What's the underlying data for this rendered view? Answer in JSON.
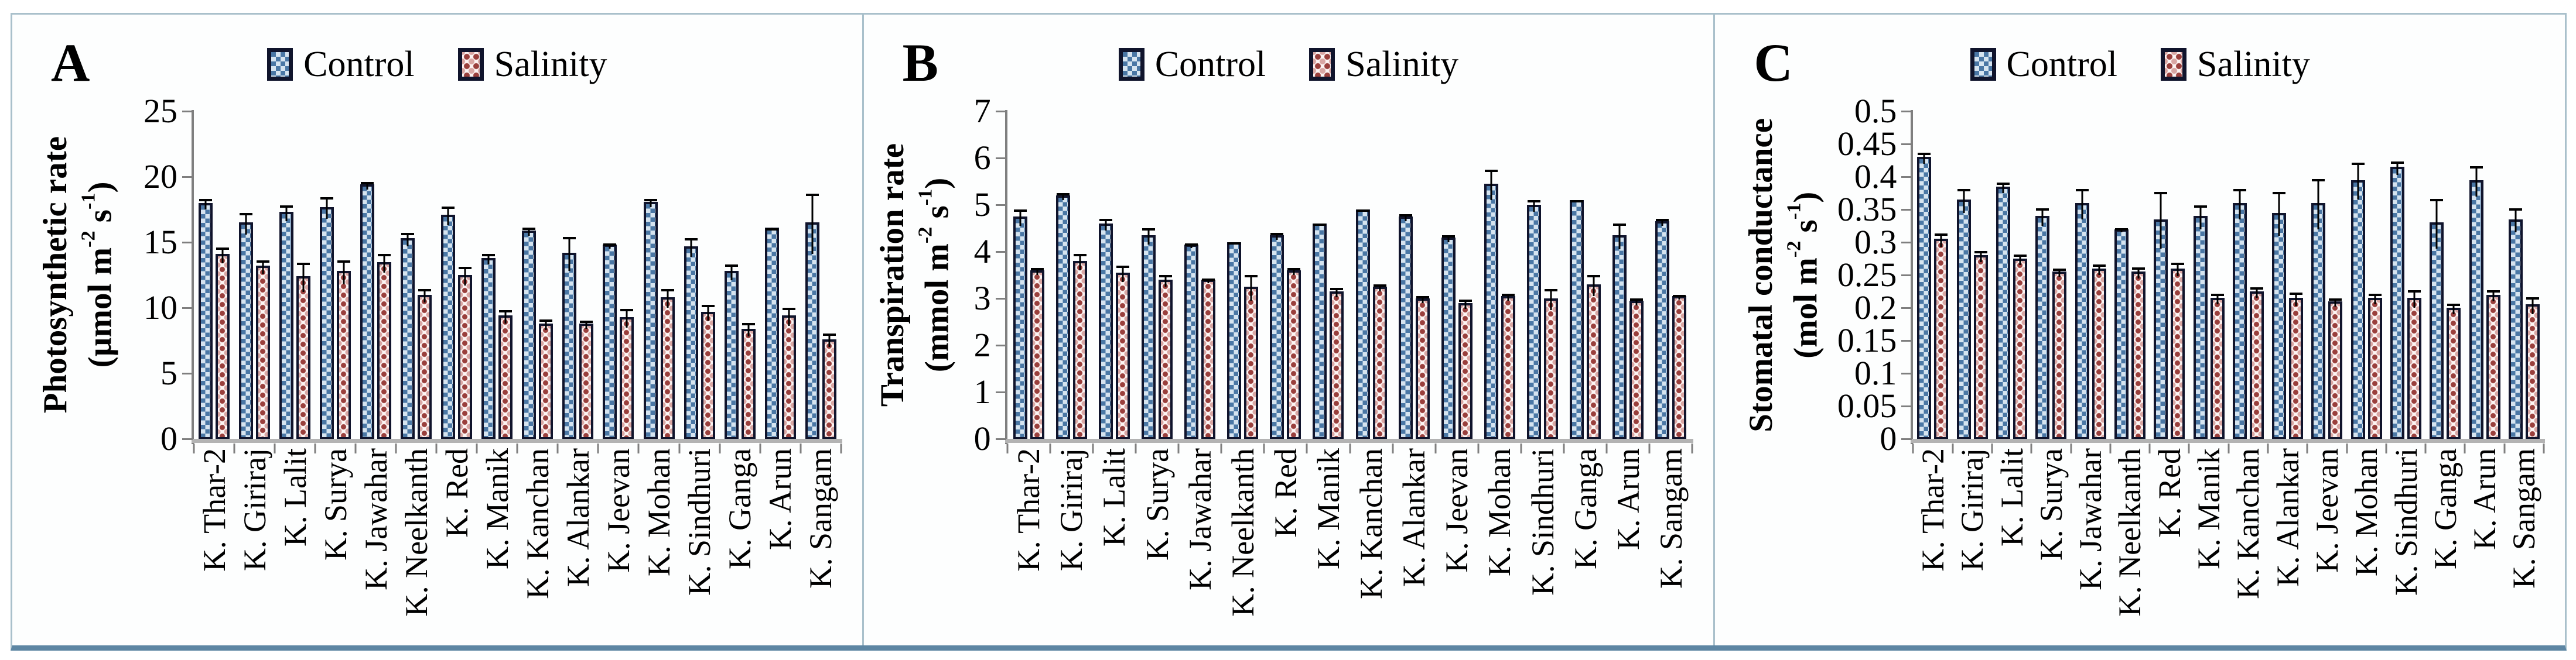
{
  "colors": {
    "control_fill": "#4a77a5",
    "control_dot": "#d6e4f0",
    "salinity_bg": "#fdf5f4",
    "salinity_dot": "#9a3f3c",
    "salinity_dot2": "#d9a7a4",
    "bar_border": "#10142c",
    "axis": "#7f7f7f",
    "baseline": "#b3b3b3",
    "error": "#000000",
    "frame_border": "#a9c0cb",
    "frame_bottom": "#5d86a3"
  },
  "chart_data": [
    {
      "type": "bar",
      "panel_label": "A",
      "title": "",
      "ylabel": "Photosynthetic rate",
      "unit_parts": {
        "p1": "(µmol m",
        "sup1": "-2",
        "p2": " s",
        "sup2": "-1",
        "p3": ")"
      },
      "ylim": [
        0,
        25
      ],
      "yticks": [
        "0",
        "5",
        "10",
        "15",
        "20",
        "25"
      ],
      "grid": false,
      "legend_position": "top-center",
      "categories": [
        "K. Thar-2",
        "K. Giriraj",
        "K. Lalit",
        "K. Surya",
        "K. Jawahar",
        "K. Neelkanth",
        "K. Red",
        "K. Manik",
        "K. Kanchan",
        "K. Alankar",
        "K. Jeevan",
        "K. Mohan",
        "K. Sindhuri",
        "K. Ganga",
        "K. Arun",
        "K. Sangam"
      ],
      "series": [
        {
          "name": "Control",
          "values": [
            18.0,
            16.5,
            17.3,
            17.7,
            19.4,
            15.3,
            17.1,
            13.8,
            15.9,
            14.2,
            14.8,
            18.1,
            14.7,
            12.8,
            16.1,
            16.5
          ],
          "errors": [
            0.5,
            0.9,
            0.7,
            0.9,
            0.4,
            0.6,
            0.8,
            0.5,
            0.4,
            1.4,
            0.3,
            0.4,
            0.8,
            0.7,
            0.15,
            2.4
          ]
        },
        {
          "name": "Salinity",
          "values": [
            14.1,
            13.2,
            12.4,
            12.8,
            13.5,
            11.0,
            12.5,
            9.4,
            8.8,
            8.8,
            9.3,
            10.8,
            9.7,
            8.4,
            9.4,
            7.6
          ],
          "errors": [
            0.7,
            0.6,
            1.2,
            1.0,
            0.8,
            0.6,
            0.8,
            0.6,
            0.5,
            0.4,
            0.8,
            0.8,
            0.7,
            0.6,
            0.8,
            0.6
          ]
        }
      ]
    },
    {
      "type": "bar",
      "panel_label": "B",
      "title": "",
      "ylabel": "Transpiration rate",
      "unit_parts": {
        "p1": "(mmol m",
        "sup1": "-2",
        "p2": " s",
        "sup2": "-1",
        "p3": ")"
      },
      "ylim": [
        0,
        7
      ],
      "yticks": [
        "0",
        "1",
        "2",
        "3",
        "4",
        "5",
        "6",
        "7"
      ],
      "grid": false,
      "legend_position": "top-center",
      "categories": [
        "K. Thar-2",
        "K. Giriraj",
        "K. Lalit",
        "K. Surya",
        "K. Jawahar",
        "K. Neelkanth",
        "K. Red",
        "K. Manik",
        "K. Kanchan",
        "K. Alankar",
        "K. Jeevan",
        "K. Mohan",
        "K. Sindhuri",
        "K. Ganga",
        "K. Arun",
        "K. Sangam"
      ],
      "series": [
        {
          "name": "Control",
          "values": [
            4.75,
            5.2,
            4.6,
            4.35,
            4.15,
            4.2,
            4.35,
            4.6,
            4.9,
            4.75,
            4.3,
            5.45,
            5.0,
            5.1,
            4.35,
            4.65
          ],
          "errors": [
            0.2,
            0.1,
            0.15,
            0.2,
            0.08,
            0.05,
            0.1,
            0.05,
            0.05,
            0.1,
            0.1,
            0.35,
            0.15,
            0.05,
            0.3,
            0.1
          ]
        },
        {
          "name": "Salinity",
          "values": [
            3.6,
            3.8,
            3.55,
            3.4,
            3.4,
            3.25,
            3.6,
            3.15,
            3.25,
            3.0,
            2.9,
            3.05,
            3.0,
            3.3,
            2.95,
            3.05
          ],
          "errors": [
            0.1,
            0.2,
            0.2,
            0.15,
            0.08,
            0.3,
            0.1,
            0.12,
            0.1,
            0.1,
            0.12,
            0.1,
            0.25,
            0.25,
            0.1,
            0.08
          ]
        }
      ]
    },
    {
      "type": "bar",
      "panel_label": "C",
      "title": "",
      "ylabel": "Stomatal conductance",
      "unit_parts": {
        "p1": "(mol m",
        "sup1": "-2",
        "p2": " s",
        "sup2": "-1",
        "p3": ")"
      },
      "ylim": [
        0,
        0.5
      ],
      "yticks": [
        "0",
        "0.05",
        "0.1",
        "0.15",
        "0.2",
        "0.25",
        "0.3",
        "0.35",
        "0.4",
        "0.45",
        "0.5"
      ],
      "grid": false,
      "legend_position": "top-center",
      "categories": [
        "K. Thar-2",
        "K. Giriraj",
        "K. Lalit",
        "K. Surya",
        "K. Jawahar",
        "K. Neelkanth",
        "K. Red",
        "K. Manik",
        "K. Kanchan",
        "K. Alankar",
        "K. Jeevan",
        "K. Mohan",
        "K. Sindhuri",
        "K. Ganga",
        "K. Arun",
        "K. Sangam"
      ],
      "series": [
        {
          "name": "Control",
          "values": [
            0.43,
            0.365,
            0.385,
            0.34,
            0.36,
            0.32,
            0.335,
            0.34,
            0.36,
            0.345,
            0.36,
            0.395,
            0.415,
            0.33,
            0.395,
            0.335
          ],
          "errors": [
            0.01,
            0.02,
            0.01,
            0.015,
            0.025,
            0.005,
            0.045,
            0.02,
            0.025,
            0.035,
            0.04,
            0.03,
            0.012,
            0.04,
            0.025,
            0.02
          ]
        },
        {
          "name": "Salinity",
          "values": [
            0.305,
            0.28,
            0.275,
            0.255,
            0.26,
            0.255,
            0.26,
            0.215,
            0.225,
            0.215,
            0.21,
            0.215,
            0.215,
            0.2,
            0.22,
            0.205
          ],
          "errors": [
            0.012,
            0.01,
            0.01,
            0.008,
            0.01,
            0.01,
            0.012,
            0.01,
            0.01,
            0.012,
            0.008,
            0.01,
            0.015,
            0.01,
            0.01,
            0.015
          ]
        }
      ]
    }
  ]
}
